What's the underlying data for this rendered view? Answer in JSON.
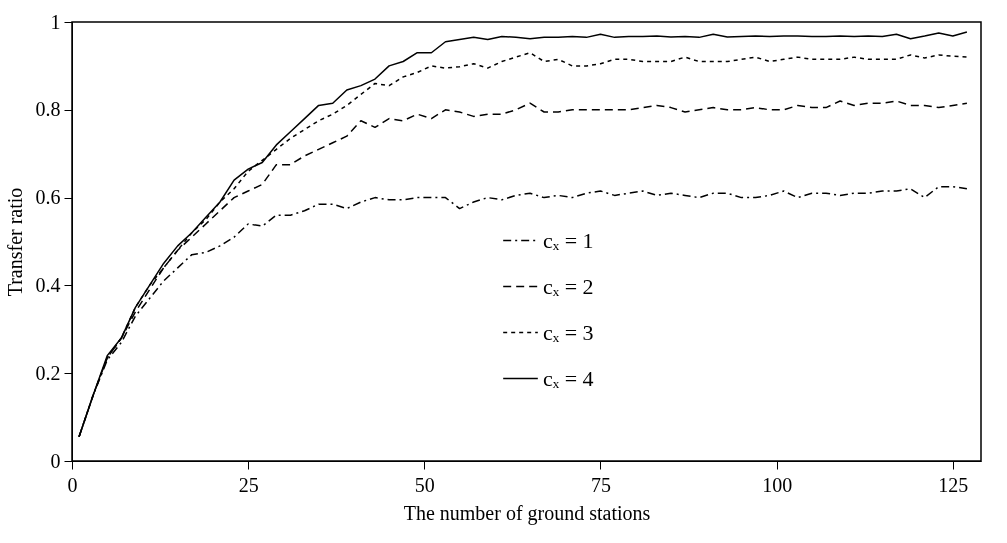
{
  "chart_data": {
    "type": "line",
    "xlabel": "The number of ground stations",
    "ylabel": "Transfer ratio",
    "x": [
      1,
      3,
      5,
      7,
      9,
      11,
      13,
      15,
      17,
      19,
      21,
      23,
      25,
      27,
      29,
      31,
      33,
      35,
      37,
      39,
      41,
      43,
      45,
      47,
      49,
      51,
      53,
      55,
      57,
      59,
      61,
      63,
      65,
      67,
      69,
      71,
      73,
      75,
      77,
      79,
      81,
      83,
      85,
      87,
      89,
      91,
      93,
      95,
      97,
      99,
      101,
      103,
      105,
      107,
      109,
      111,
      113,
      115,
      117,
      119,
      121,
      123,
      125,
      127
    ],
    "series": [
      {
        "name": "cₓ = 1",
        "color": "#000000",
        "line_style": "dashdot",
        "values": [
          0.055,
          0.15,
          0.23,
          0.27,
          0.33,
          0.37,
          0.41,
          0.44,
          0.47,
          0.475,
          0.49,
          0.51,
          0.54,
          0.535,
          0.56,
          0.56,
          0.57,
          0.585,
          0.585,
          0.575,
          0.59,
          0.6,
          0.595,
          0.595,
          0.6,
          0.6,
          0.6,
          0.575,
          0.59,
          0.6,
          0.595,
          0.605,
          0.61,
          0.6,
          0.605,
          0.6,
          0.61,
          0.615,
          0.605,
          0.61,
          0.615,
          0.605,
          0.61,
          0.605,
          0.6,
          0.61,
          0.61,
          0.6,
          0.6,
          0.605,
          0.615,
          0.6,
          0.61,
          0.61,
          0.605,
          0.61,
          0.61,
          0.615,
          0.615,
          0.62,
          0.6,
          0.625,
          0.625,
          0.62
        ]
      },
      {
        "name": "cₓ = 2",
        "color": "#000000",
        "line_style": "dashed",
        "values": [
          0.055,
          0.15,
          0.235,
          0.28,
          0.34,
          0.39,
          0.44,
          0.48,
          0.51,
          0.54,
          0.57,
          0.6,
          0.615,
          0.63,
          0.675,
          0.675,
          0.695,
          0.71,
          0.725,
          0.74,
          0.775,
          0.76,
          0.78,
          0.775,
          0.79,
          0.78,
          0.8,
          0.795,
          0.785,
          0.79,
          0.79,
          0.8,
          0.815,
          0.795,
          0.795,
          0.8,
          0.8,
          0.8,
          0.8,
          0.8,
          0.805,
          0.81,
          0.805,
          0.795,
          0.8,
          0.805,
          0.8,
          0.8,
          0.805,
          0.8,
          0.8,
          0.81,
          0.805,
          0.805,
          0.82,
          0.81,
          0.815,
          0.815,
          0.82,
          0.81,
          0.81,
          0.805,
          0.81,
          0.815
        ]
      },
      {
        "name": "cₓ = 3",
        "color": "#000000",
        "line_style": "dotted",
        "values": [
          0.055,
          0.15,
          0.235,
          0.28,
          0.35,
          0.4,
          0.44,
          0.48,
          0.52,
          0.55,
          0.59,
          0.62,
          0.66,
          0.685,
          0.71,
          0.735,
          0.755,
          0.775,
          0.79,
          0.81,
          0.835,
          0.86,
          0.855,
          0.875,
          0.885,
          0.9,
          0.895,
          0.898,
          0.905,
          0.895,
          0.91,
          0.92,
          0.93,
          0.91,
          0.915,
          0.9,
          0.9,
          0.905,
          0.915,
          0.915,
          0.91,
          0.91,
          0.91,
          0.92,
          0.91,
          0.91,
          0.91,
          0.915,
          0.92,
          0.91,
          0.915,
          0.92,
          0.915,
          0.915,
          0.915,
          0.92,
          0.915,
          0.915,
          0.915,
          0.925,
          0.918,
          0.925,
          0.922,
          0.92
        ]
      },
      {
        "name": "cₓ = 4",
        "color": "#000000",
        "line_style": "solid",
        "values": [
          0.055,
          0.15,
          0.24,
          0.28,
          0.35,
          0.4,
          0.45,
          0.49,
          0.52,
          0.555,
          0.59,
          0.64,
          0.665,
          0.68,
          0.72,
          0.75,
          0.78,
          0.81,
          0.815,
          0.845,
          0.855,
          0.87,
          0.9,
          0.91,
          0.93,
          0.93,
          0.955,
          0.96,
          0.965,
          0.96,
          0.967,
          0.965,
          0.962,
          0.965,
          0.965,
          0.967,
          0.965,
          0.972,
          0.965,
          0.967,
          0.967,
          0.968,
          0.966,
          0.967,
          0.965,
          0.972,
          0.966,
          0.967,
          0.968,
          0.967,
          0.968,
          0.968,
          0.967,
          0.967,
          0.968,
          0.967,
          0.968,
          0.967,
          0.972,
          0.962,
          0.968,
          0.975,
          0.968,
          0.977
        ]
      }
    ],
    "xlim": [
      0,
      129
    ],
    "xticks": [
      0,
      25,
      50,
      75,
      100,
      125
    ],
    "ylim": [
      0,
      1
    ],
    "yticks": [
      0,
      0.2,
      0.4,
      0.6,
      0.8,
      1
    ],
    "legend": "bottom",
    "grid": false
  }
}
